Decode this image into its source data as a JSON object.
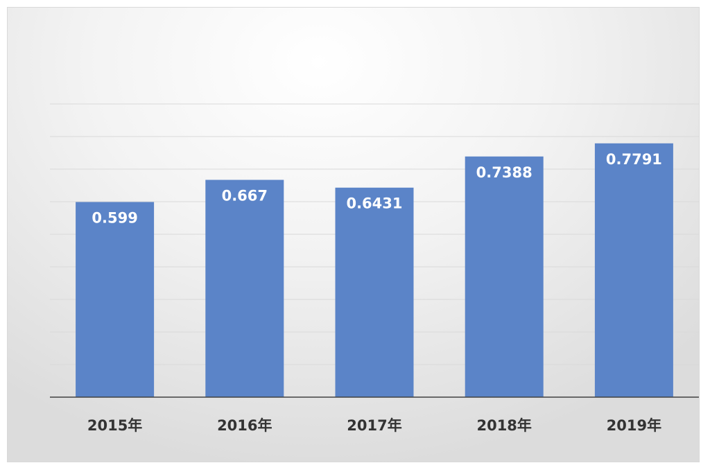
{
  "chart_data": {
    "type": "bar",
    "categories": [
      "2015年",
      "2016年",
      "2017年",
      "2018年",
      "2019年"
    ],
    "values": [
      0.599,
      0.667,
      0.6431,
      0.7388,
      0.7791
    ],
    "data_labels": [
      "0.599",
      "0.667",
      "0.6431",
      "0.7388",
      "0.7791"
    ],
    "ylim": [
      0,
      0.9
    ],
    "grid": true,
    "legend": "none",
    "colors": {
      "bar": "#5b84c8",
      "grid": "#d9d9d9",
      "axis": "#404040"
    }
  }
}
